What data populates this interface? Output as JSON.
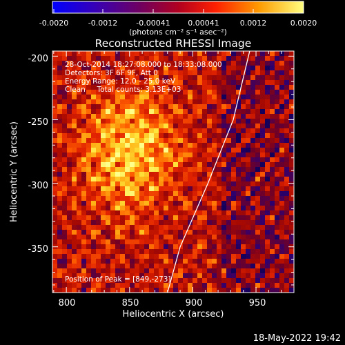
{
  "colorbar": {
    "ticks": [
      "-0.0020",
      "-0.0012",
      "-0.00041",
      "0.00041",
      "0.0012",
      "0.0020"
    ],
    "unit_label": "(photons cm⁻² s⁻¹ asec⁻²)",
    "range": [
      -0.002,
      0.002
    ]
  },
  "title": "Reconstructed RHESSI Image",
  "info": {
    "line1": "28-Oct-2014 18:27:08.000 to 18:33:08.000",
    "line2": "Detectors: 3F 6F 9F, Att 0",
    "line3": "Energy Range: 12.0 - 25.0 keV",
    "line4": "Clean     Total counts: 3.13E+03",
    "peak": "Position of Peak = [849,-273]"
  },
  "xaxis": {
    "label": "Heliocentric X (arcsec)",
    "ticks": [
      "800",
      "850",
      "900",
      "950"
    ],
    "range": [
      789,
      980
    ]
  },
  "yaxis": {
    "label": "Heliocentric Y (arcsec)",
    "ticks": [
      "-200",
      "-250",
      "-300",
      "-350"
    ],
    "range": [
      -386,
      -196
    ]
  },
  "footer": {
    "timestamp": "18-May-2022 19:42"
  },
  "image": {
    "peak_position": [
      849,
      -273
    ],
    "limb_curve": [
      [
        945,
        -196
      ],
      [
        932,
        -250
      ],
      [
        912,
        -300
      ],
      [
        890,
        -350
      ],
      [
        880,
        -386
      ]
    ]
  }
}
